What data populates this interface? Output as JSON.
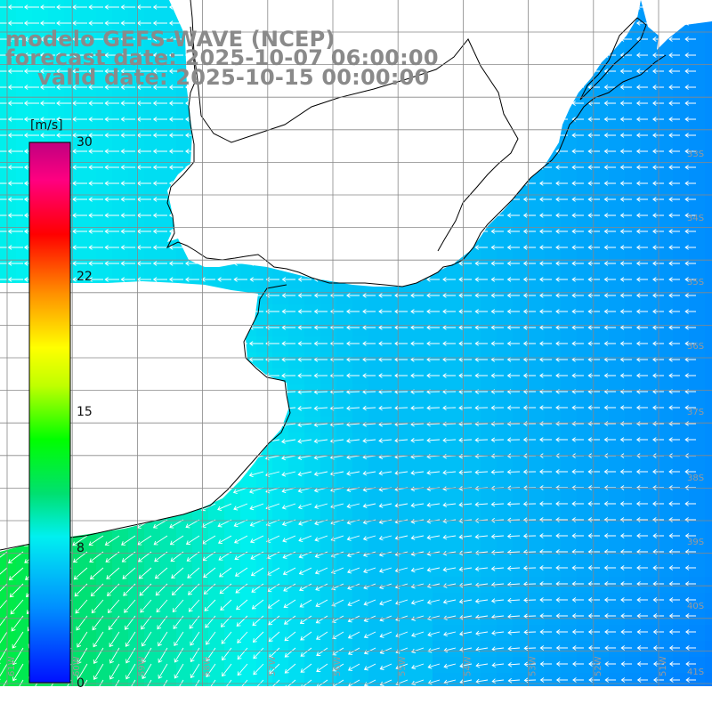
{
  "title": {
    "line1": "modelo GEFS-WAVE (NCEP)",
    "line2": "forecast date: 2025-10-07 06:00:00",
    "line3": "valid date: 2025-10-15 00:00:00"
  },
  "colorbar": {
    "unit": "[m/s]",
    "ticks": [
      "30",
      "22",
      "15",
      "8",
      "0"
    ],
    "tick_values": [
      30,
      22,
      15,
      8,
      0
    ],
    "range": [
      0,
      30
    ],
    "colors": [
      "#0010ff",
      "#0090ff",
      "#00f0f0",
      "#00e060",
      "#00ff00",
      "#b0ff00",
      "#ffff00",
      "#ff9000",
      "#ff0000",
      "#ff00a0",
      "#c00080"
    ]
  },
  "grid": {
    "lat_labels": [
      "33S",
      "34S",
      "35S",
      "36S",
      "37S",
      "38S",
      "39S",
      "40S",
      "41S"
    ],
    "lon_labels": [
      "61W",
      "60W",
      "59W",
      "58W",
      "57W",
      "56W",
      "55W",
      "54W",
      "53W",
      "52W",
      "51W"
    ]
  },
  "field": {
    "variable": "wind speed and direction",
    "region": "Rio de la Plata / South Atlantic",
    "speed_min_ms": 4,
    "speed_max_ms": 13
  },
  "colors": {
    "land": "#ffffff",
    "coast": "#000000",
    "grid": "#888888",
    "title": "#8a8a8a"
  }
}
